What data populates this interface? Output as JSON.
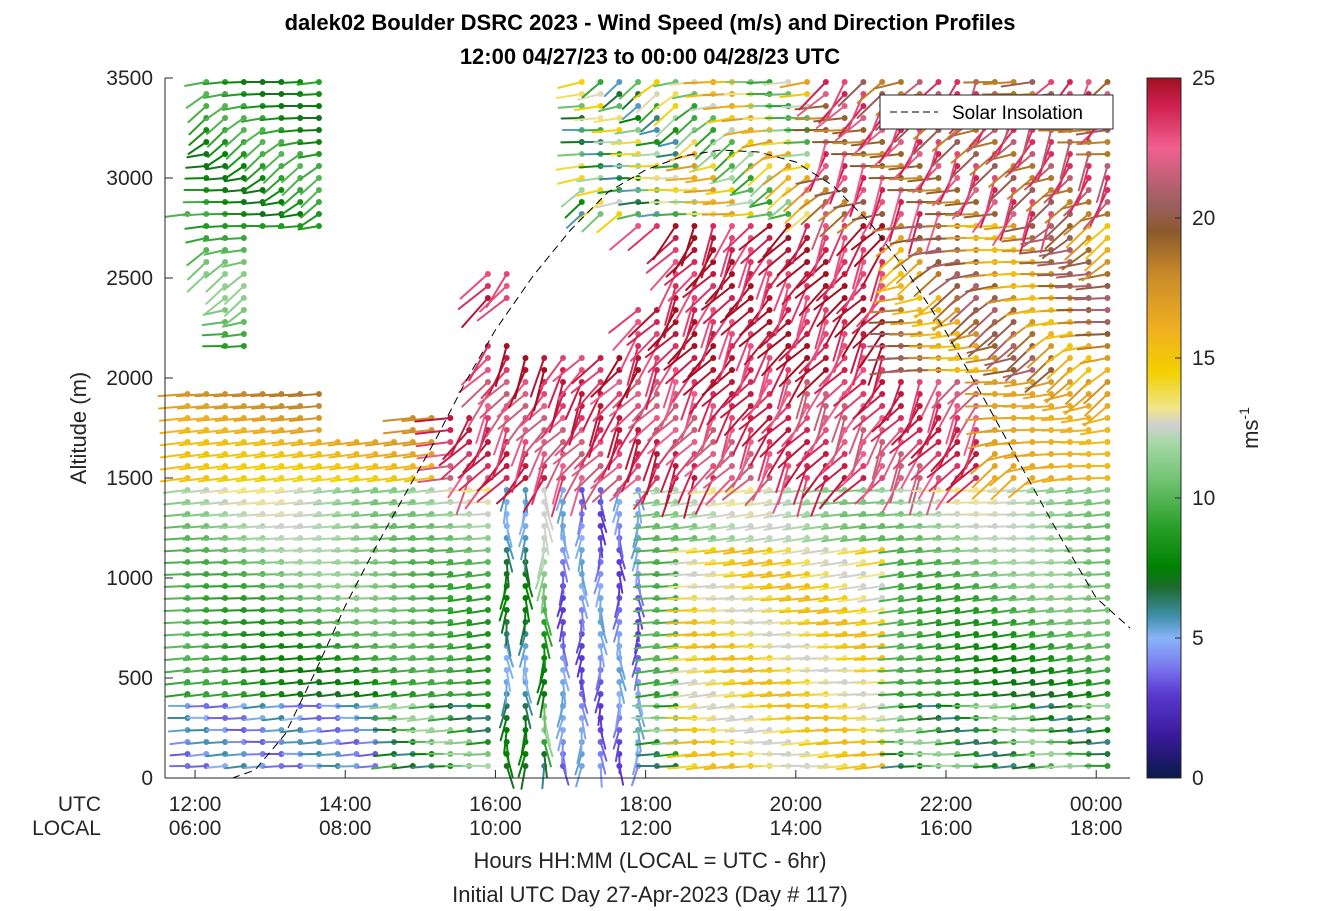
{
  "chart_data": {
    "type": "wind-barb-profile",
    "title_line1": "dalek02 Boulder DSRC 2023 - Wind Speed (m/s) and Direction Profiles",
    "title_line2": "12:00 04/27/23 to 00:00 04/28/23  UTC",
    "ylabel": "Altitude (m)",
    "xlabel": "Hours HH:MM  (LOCAL = UTC - 6hr)",
    "footer": "Initial UTC Day 27-Apr-2023 (Day # 117)",
    "ylim": [
      0,
      3500
    ],
    "yticks": [
      0,
      500,
      1000,
      1500,
      2000,
      2500,
      3000,
      3500
    ],
    "ytick_labels": [
      "0",
      "500",
      "1000",
      "1500",
      "2000",
      "2500",
      "3000",
      "3500"
    ],
    "xlim": [
      11.6,
      24.45
    ],
    "xrow_utc_label": "UTC",
    "xrow_local_label": "LOCAL",
    "xticks_utc": [
      "12:00",
      "14:00",
      "16:00",
      "18:00",
      "20:00",
      "22:00",
      "00:00"
    ],
    "xticks_local": [
      "06:00",
      "08:00",
      "10:00",
      "12:00",
      "14:00",
      "16:00",
      "18:00"
    ],
    "xtick_hours": [
      12,
      14,
      16,
      18,
      20,
      22,
      24
    ],
    "legend": {
      "label": "Solar Insolation",
      "position": "top-right"
    },
    "solar_insolation_peak": {
      "time_hour": 19.2,
      "altitude_m": 3140
    },
    "solar_insolation_curve": [
      [
        11.8,
        0
      ],
      [
        12.5,
        0
      ],
      [
        12.8,
        40
      ],
      [
        13.2,
        220
      ],
      [
        13.6,
        530
      ],
      [
        14,
        860
      ],
      [
        14.4,
        1150
      ],
      [
        14.8,
        1420
      ],
      [
        15.2,
        1690
      ],
      [
        15.6,
        1980
      ],
      [
        16,
        2240
      ],
      [
        16.5,
        2510
      ],
      [
        17,
        2740
      ],
      [
        17.5,
        2930
      ],
      [
        18,
        3040
      ],
      [
        18.5,
        3110
      ],
      [
        19,
        3140
      ],
      [
        19.5,
        3130
      ],
      [
        20,
        3080
      ],
      [
        20.5,
        2960
      ],
      [
        21,
        2770
      ],
      [
        21.5,
        2520
      ],
      [
        22,
        2230
      ],
      [
        22.5,
        1900
      ],
      [
        23,
        1560
      ],
      [
        23.5,
        1220
      ],
      [
        24,
        900
      ],
      [
        24.45,
        750
      ]
    ],
    "colorbar": {
      "label": "ms-1",
      "label_base": "ms",
      "label_exp": "-1",
      "min": 0,
      "max": 25,
      "ticks": [
        0,
        5,
        10,
        15,
        20,
        25
      ],
      "tick_labels": [
        "0",
        "5",
        "10",
        "15",
        "20",
        "25"
      ],
      "stops": [
        [
          0,
          "#0a1a4a"
        ],
        [
          1.5,
          "#3a1a9a"
        ],
        [
          3,
          "#5a3ad0"
        ],
        [
          4,
          "#7a7aee"
        ],
        [
          5,
          "#8ab4f8"
        ],
        [
          5.8,
          "#3d8ea8"
        ],
        [
          6.8,
          "#1e6b2e"
        ],
        [
          7.5,
          "#008000"
        ],
        [
          9,
          "#2aa02a"
        ],
        [
          10.5,
          "#6cc06c"
        ],
        [
          12,
          "#a8d8a8"
        ],
        [
          12.6,
          "#d0d0d0"
        ],
        [
          13.2,
          "#f0e68c"
        ],
        [
          14.5,
          "#f2d000"
        ],
        [
          16,
          "#f0b020"
        ],
        [
          18,
          "#c88a2a"
        ],
        [
          19.5,
          "#8b5a2b"
        ],
        [
          20.5,
          "#9a6060"
        ],
        [
          22.5,
          "#f06090"
        ],
        [
          24,
          "#d02050"
        ],
        [
          25,
          "#a01020"
        ]
      ]
    },
    "barb_grid": {
      "times": [
        11.9,
        12.15,
        12.4,
        12.65,
        12.9,
        13.15,
        13.4,
        13.65,
        13.9,
        14.15,
        14.4,
        14.65,
        14.9,
        15.15,
        15.4,
        15.65,
        15.9,
        16.15,
        16.4,
        16.65,
        16.9,
        17.15,
        17.4,
        17.65,
        17.9,
        18.15,
        18.4,
        18.65,
        18.9,
        19.15,
        19.4,
        19.65,
        19.9,
        20.15,
        20.4,
        20.65,
        20.9,
        21.15,
        21.4,
        21.65,
        21.9,
        22.15,
        22.4,
        22.65,
        22.9,
        23.15,
        23.4,
        23.65,
        23.9,
        24.15
      ],
      "altitudes": [
        60,
        120,
        180,
        240,
        300,
        360,
        420,
        480,
        540,
        600,
        660,
        720,
        780,
        840,
        900,
        960,
        1020,
        1080,
        1140,
        1200,
        1260,
        1320,
        1380,
        1440,
        1500,
        1560,
        1620,
        1680,
        1740,
        1800,
        1860,
        1920,
        1980,
        2040,
        2100,
        2160,
        2220,
        2280,
        2340,
        2400,
        2460,
        2520,
        2580,
        2640,
        2700,
        2760,
        2820,
        2880,
        2940,
        3000,
        3060,
        3120,
        3180,
        3240,
        3300,
        3360,
        3420,
        3480
      ]
    }
  }
}
